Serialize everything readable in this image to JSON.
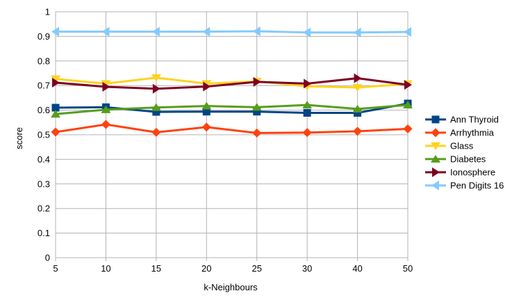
{
  "chart_data": {
    "type": "line",
    "title": "",
    "xlabel": "k-Neighbours",
    "ylabel": "score",
    "ylim": [
      0,
      1
    ],
    "ytick_step": 0.1,
    "grid": true,
    "legend_position": "right",
    "categories": [
      "5",
      "10",
      "15",
      "20",
      "25",
      "30",
      "40",
      "50"
    ],
    "series": [
      {
        "name": "Ann Thyroid",
        "color": "#004586",
        "marker": "square",
        "values": [
          0.61,
          0.612,
          0.593,
          0.594,
          0.594,
          0.589,
          0.589,
          0.627
        ]
      },
      {
        "name": "Arrhythmia",
        "color": "#ff420e",
        "marker": "diamond",
        "values": [
          0.511,
          0.542,
          0.51,
          0.531,
          0.507,
          0.509,
          0.514,
          0.524
        ]
      },
      {
        "name": "Glass",
        "color": "#ffd320",
        "marker": "triangle-down",
        "values": [
          0.727,
          0.708,
          0.732,
          0.708,
          0.717,
          0.697,
          0.692,
          0.707
        ]
      },
      {
        "name": "Diabetes",
        "color": "#579d1c",
        "marker": "triangle-up",
        "values": [
          0.584,
          0.602,
          0.611,
          0.617,
          0.612,
          0.621,
          0.605,
          0.621
        ]
      },
      {
        "name": "Ionosphere",
        "color": "#7e0021",
        "marker": "triangle-right",
        "values": [
          0.712,
          0.695,
          0.687,
          0.696,
          0.715,
          0.708,
          0.73,
          0.703
        ]
      },
      {
        "name": "Pen Digits 16",
        "color": "#83caff",
        "marker": "triangle-left",
        "values": [
          0.919,
          0.919,
          0.919,
          0.919,
          0.921,
          0.916,
          0.916,
          0.918
        ]
      }
    ]
  }
}
